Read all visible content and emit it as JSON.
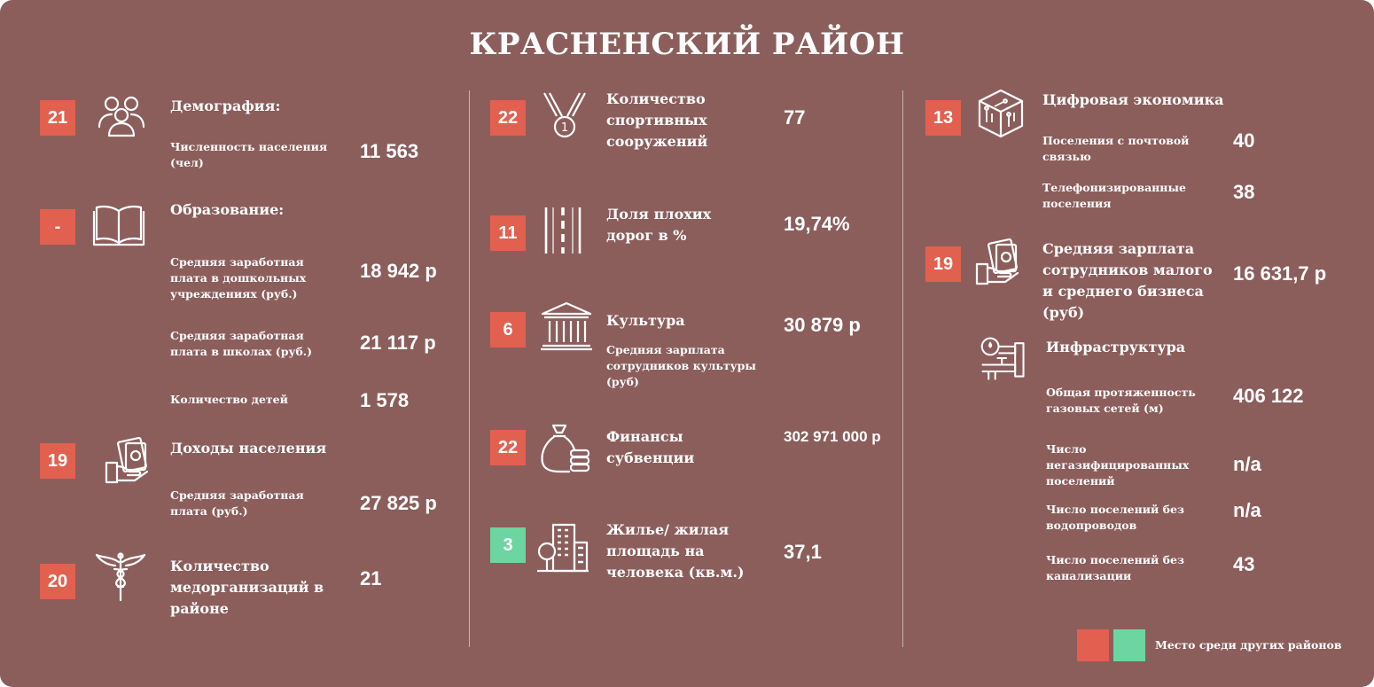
{
  "title": "КРАСНЕНСКИЙ РАЙОН",
  "colors": {
    "background": "#8b5e5c",
    "rank_red": "#e2604f",
    "rank_green": "#6dd5a1"
  },
  "col1": {
    "demography": {
      "rank": "21",
      "icon": "people-icon",
      "heading": "Демография:",
      "population_label": "Численность населения (чел)",
      "population_value": "11 563"
    },
    "education": {
      "rank": "-",
      "icon": "book-icon",
      "heading": "Образование:",
      "preschool_label": "Средняя заработная плата в дошкольных учреждениях (руб.)",
      "preschool_value": "18 942 р",
      "school_label": "Средняя заработная плата в школах (руб.)",
      "school_value": "21 117 р",
      "children_label": "Количество детей",
      "children_value": "1 578"
    },
    "income": {
      "rank": "19",
      "icon": "money-hand-icon",
      "heading": "Доходы населения",
      "salary_label": "Средняя заработная плата (руб.)",
      "salary_value": "27 825 р"
    },
    "medical": {
      "rank": "20",
      "icon": "caduceus-icon",
      "heading": "Количество медорганизаций в районе",
      "value": "21"
    }
  },
  "col2": {
    "sports": {
      "rank": "22",
      "icon": "medal-icon",
      "heading": "Количество спортивных сооружений",
      "value": "77"
    },
    "roads": {
      "rank": "11",
      "icon": "road-icon",
      "heading": "Доля плохих дорог в %",
      "value": "19,74%"
    },
    "culture": {
      "rank": "6",
      "icon": "museum-icon",
      "heading": "Культура",
      "sub_label": "Средняя зарплата сотрудников культуры (руб)",
      "value": "30 879 р"
    },
    "finance": {
      "rank": "22",
      "icon": "money-bag-icon",
      "heading": "Финансы субвенции",
      "value": "302 971 000 р"
    },
    "housing": {
      "rank": "3",
      "icon": "buildings-icon",
      "heading": "Жилье/ жилая площадь на человека (кв.м.)",
      "value": "37,1"
    }
  },
  "col3": {
    "digital": {
      "rank": "13",
      "icon": "circuit-cube-icon",
      "heading": "Цифровая экономика",
      "postal_label": "Поселения с почтовой связью",
      "postal_value": "40",
      "phone_label": "Телефонизированные поселения",
      "phone_value": "38"
    },
    "sme": {
      "rank": "19",
      "icon": "money-hand-icon",
      "heading": "Средняя зарплата сотрудников малого и среднего бизнеса (руб)",
      "value": "16 631,7 р"
    },
    "infrastructure": {
      "icon": "pipes-icon",
      "heading": "Инфраструктура",
      "gas_label": "Общая протяженность газовых сетей (м)",
      "gas_value": "406 122",
      "nogas_label": "Число негазифицированных поселений",
      "nogas_value": "n/a",
      "nowater_label": "Число поселений без водопроводов",
      "nowater_value": "n/a",
      "nosewer_label": "Число поселений без канализации",
      "nosewer_value": "43"
    }
  },
  "legend": {
    "text": "Место среди других районов"
  }
}
